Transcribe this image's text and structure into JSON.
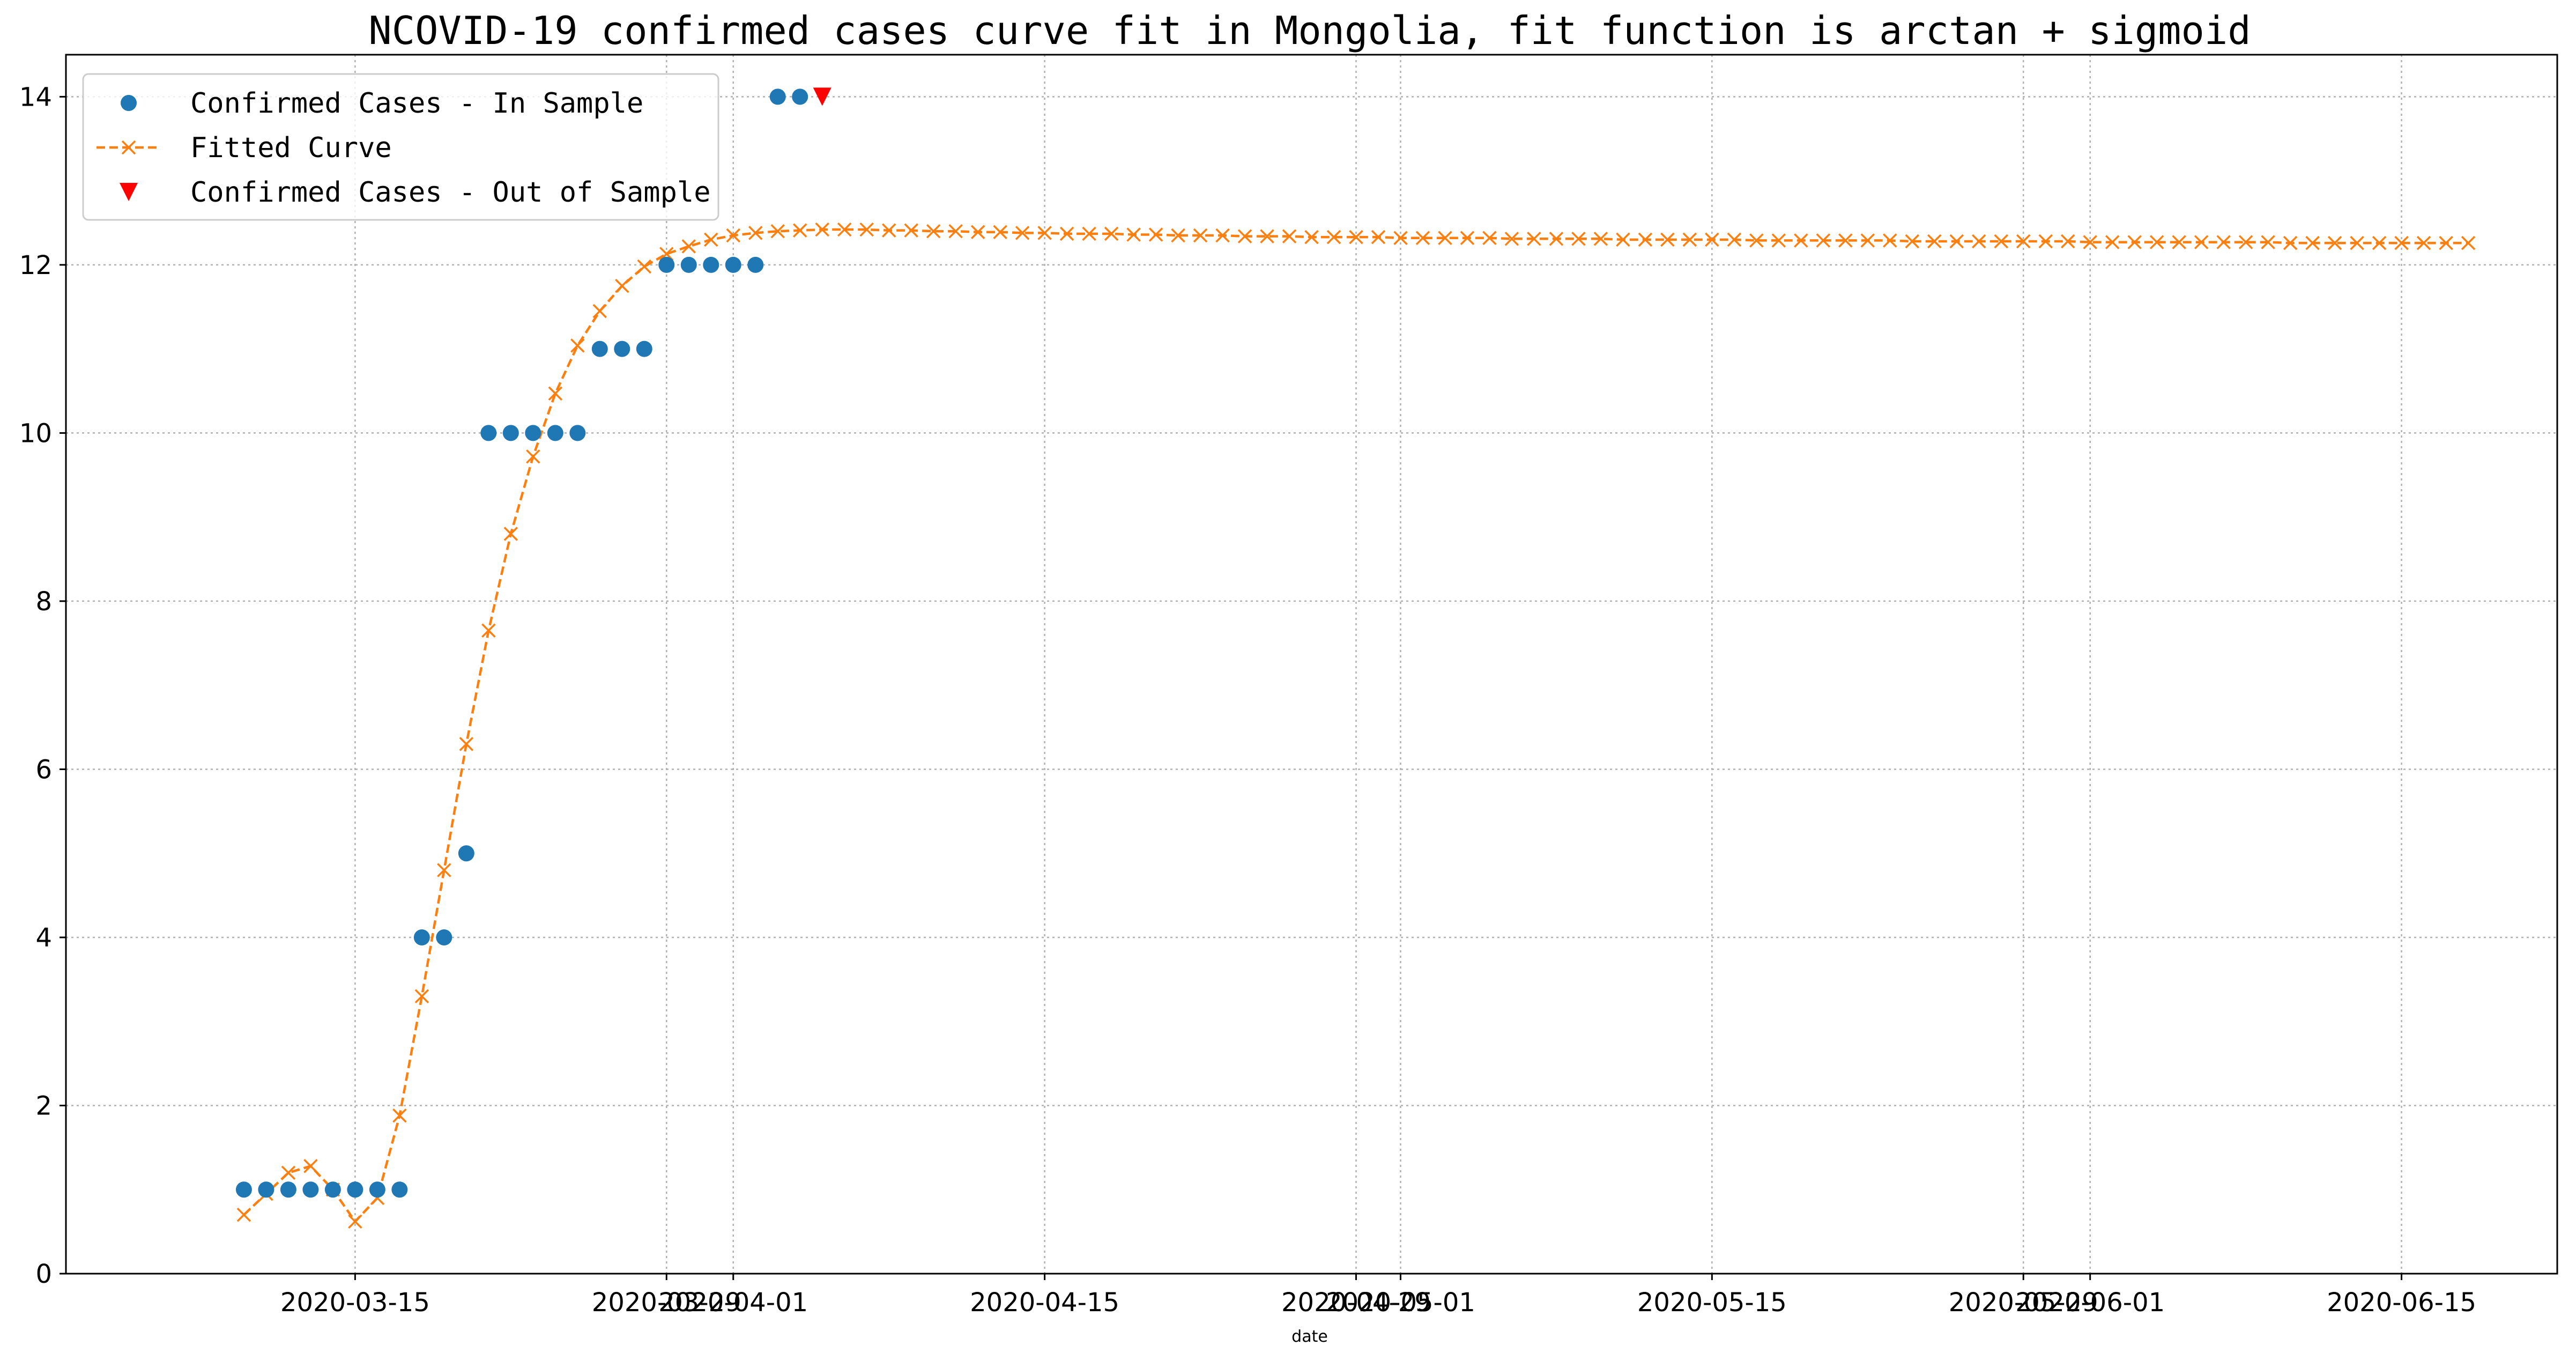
{
  "chart_data": {
    "type": "line",
    "title": "NCOVID-19 confirmed cases curve fit in Mongolia, fit function is arctan + sigmoid",
    "xlabel": "date",
    "ylabel": "",
    "ylim": [
      0,
      14.5
    ],
    "xlim": [
      "2020-03-02",
      "2020-06-22"
    ],
    "grid": true,
    "legend_position": "top-left",
    "x_tick_labels": [
      "2020-03-15",
      "2020-03-29",
      "2020-04-01",
      "2020-04-15",
      "2020-04-29",
      "2020-05-01",
      "2020-05-15",
      "2020-05-29",
      "2020-06-01",
      "2020-06-15"
    ],
    "y_tick_labels": [
      "0",
      "2",
      "4",
      "6",
      "8",
      "10",
      "12",
      "14"
    ],
    "colors": {
      "in_sample": "#1f77b4",
      "fitted": "#ff7f0e",
      "out_of_sample": "#ff0000"
    },
    "series": [
      {
        "name": "Confirmed Cases - In Sample",
        "marker": "circle",
        "start_date": "2020-03-10",
        "values": [
          1,
          1,
          1,
          1,
          1,
          1,
          1,
          1,
          4,
          4,
          5,
          10,
          10,
          10,
          10,
          10,
          11,
          11,
          11,
          12,
          12,
          12,
          12,
          12,
          14,
          14
        ]
      },
      {
        "name": "Fitted Curve",
        "marker": "x",
        "line": "dashed",
        "start_date": "2020-03-10",
        "values": [
          0.7,
          0.95,
          1.2,
          1.28,
          1.0,
          0.62,
          0.9,
          1.88,
          3.3,
          4.8,
          6.3,
          7.65,
          8.8,
          9.72,
          10.47,
          11.04,
          11.45,
          11.75,
          11.98,
          12.13,
          12.22,
          12.3,
          12.35,
          12.38,
          12.4,
          12.41,
          12.42,
          12.42,
          12.42,
          12.41,
          12.41,
          12.4,
          12.4,
          12.39,
          12.39,
          12.38,
          12.38,
          12.37,
          12.37,
          12.37,
          12.36,
          12.36,
          12.35,
          12.35,
          12.35,
          12.34,
          12.34,
          12.34,
          12.33,
          12.33,
          12.33,
          12.33,
          12.32,
          12.32,
          12.32,
          12.32,
          12.32,
          12.31,
          12.31,
          12.31,
          12.31,
          12.31,
          12.3,
          12.3,
          12.3,
          12.3,
          12.3,
          12.3,
          12.29,
          12.29,
          12.29,
          12.29,
          12.29,
          12.29,
          12.29,
          12.28,
          12.28,
          12.28,
          12.28,
          12.28,
          12.28,
          12.28,
          12.28,
          12.27,
          12.27,
          12.27,
          12.27,
          12.27,
          12.27,
          12.27,
          12.27,
          12.27,
          12.26,
          12.26,
          12.26,
          12.26,
          12.26,
          12.26,
          12.26,
          12.26,
          12.26
        ]
      },
      {
        "name": "Confirmed Cases - Out of Sample",
        "marker": "triangle-down",
        "x": [
          "2020-04-05"
        ],
        "values": [
          14
        ]
      }
    ]
  }
}
